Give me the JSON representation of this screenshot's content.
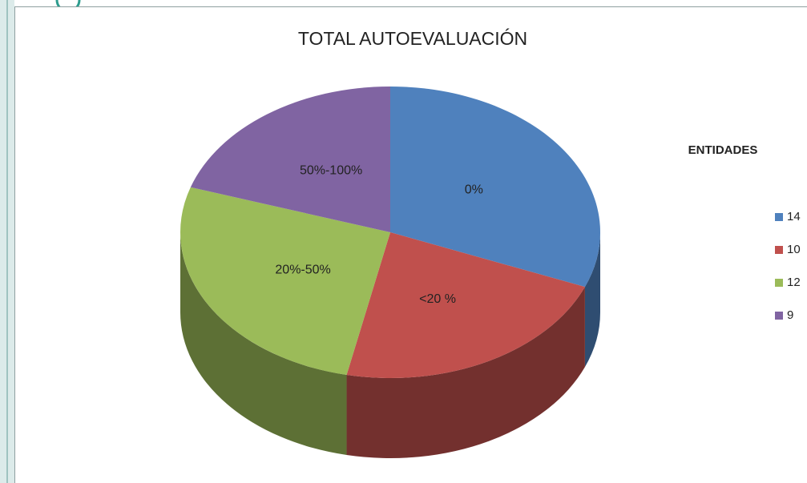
{
  "chart_data": {
    "type": "pie3d",
    "title": "TOTAL AUTOEVALUACIÓN",
    "categories": [
      "0%",
      "<20 %",
      "20%-50%",
      "50%-100%"
    ],
    "values": [
      14,
      10,
      12,
      9
    ],
    "colors": [
      "#4f81bd",
      "#c0504d",
      "#9bbb59",
      "#8064a2"
    ],
    "legend_title": "ENTIDADES",
    "legend": "right"
  }
}
